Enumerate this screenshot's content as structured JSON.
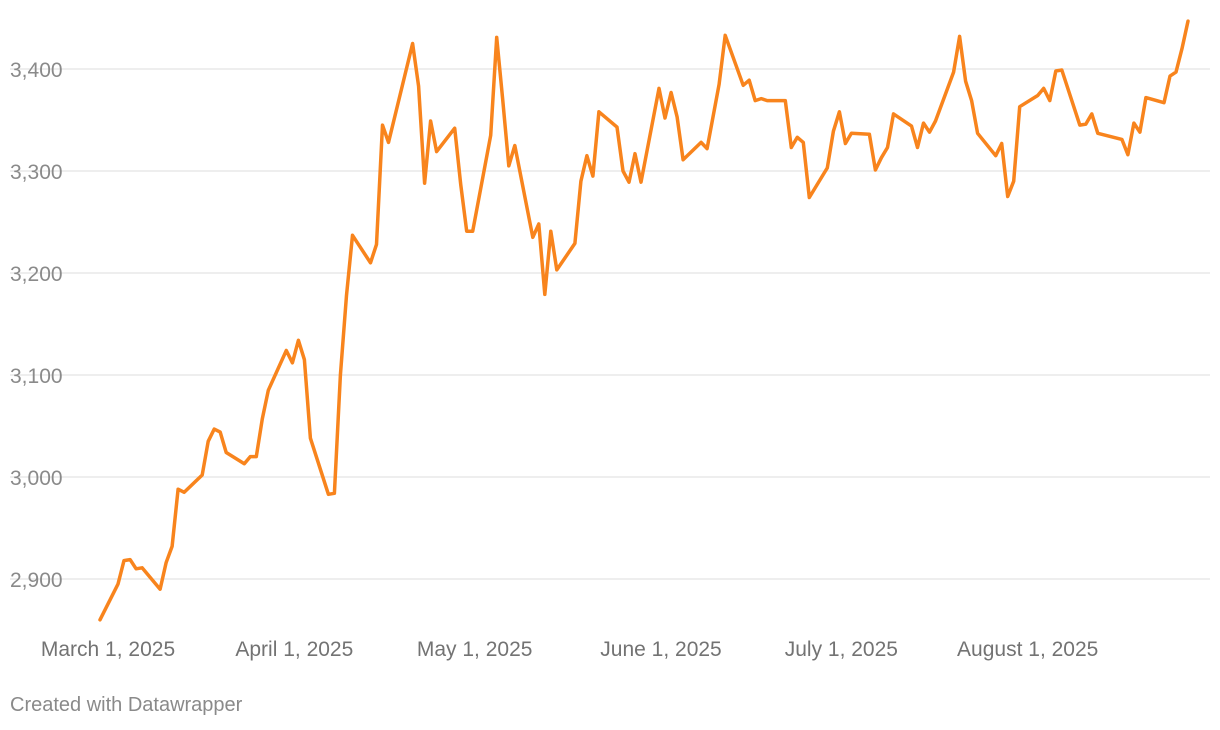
{
  "colors": {
    "series": "#f8841d"
  },
  "credit": "Created with Datawrapper",
  "chart_data": {
    "type": "line",
    "title": "",
    "xlabel": "",
    "ylabel": "",
    "grid": true,
    "ylim": [
      2860,
      3450
    ],
    "xlim": [
      "2025-03-01",
      "2025-08-28"
    ],
    "y_ticks": [
      {
        "value": 2900,
        "label": "2,900"
      },
      {
        "value": 3000,
        "label": "3,000"
      },
      {
        "value": 3100,
        "label": "3,100"
      },
      {
        "value": 3200,
        "label": "3,200"
      },
      {
        "value": 3300,
        "label": "3,300"
      },
      {
        "value": 3400,
        "label": "3,400"
      }
    ],
    "x_ticks": [
      {
        "value": "2025-03-01",
        "label": "March 1, 2025"
      },
      {
        "value": "2025-04-01",
        "label": "April 1, 2025"
      },
      {
        "value": "2025-05-01",
        "label": "May 1, 2025"
      },
      {
        "value": "2025-06-01",
        "label": "June 1, 2025"
      },
      {
        "value": "2025-07-01",
        "label": "July 1, 2025"
      },
      {
        "value": "2025-08-01",
        "label": "August 1, 2025"
      }
    ],
    "series": [
      {
        "color": "#f8841d",
        "points": [
          [
            "2025-03-01",
            2860
          ],
          [
            "2025-03-04",
            2895
          ],
          [
            "2025-03-05",
            2918
          ],
          [
            "2025-03-06",
            2919
          ],
          [
            "2025-03-07",
            2910
          ],
          [
            "2025-03-08",
            2911
          ],
          [
            "2025-03-11",
            2890
          ],
          [
            "2025-03-12",
            2916
          ],
          [
            "2025-03-13",
            2932
          ],
          [
            "2025-03-14",
            2988
          ],
          [
            "2025-03-15",
            2985
          ],
          [
            "2025-03-18",
            3002
          ],
          [
            "2025-03-19",
            3035
          ],
          [
            "2025-03-20",
            3047
          ],
          [
            "2025-03-21",
            3044
          ],
          [
            "2025-03-22",
            3024
          ],
          [
            "2025-03-25",
            3013
          ],
          [
            "2025-03-26",
            3020
          ],
          [
            "2025-03-27",
            3020
          ],
          [
            "2025-03-28",
            3057
          ],
          [
            "2025-03-29",
            3085
          ],
          [
            "2025-04-01",
            3124
          ],
          [
            "2025-04-02",
            3112
          ],
          [
            "2025-04-03",
            3134
          ],
          [
            "2025-04-04",
            3115
          ],
          [
            "2025-04-05",
            3038
          ],
          [
            "2025-04-08",
            2983
          ],
          [
            "2025-04-09",
            2984
          ],
          [
            "2025-04-10",
            3100
          ],
          [
            "2025-04-11",
            3178
          ],
          [
            "2025-04-12",
            3237
          ],
          [
            "2025-04-15",
            3210
          ],
          [
            "2025-04-16",
            3228
          ],
          [
            "2025-04-17",
            3345
          ],
          [
            "2025-04-18",
            3328
          ],
          [
            "2025-04-22",
            3425
          ],
          [
            "2025-04-23",
            3383
          ],
          [
            "2025-04-24",
            3288
          ],
          [
            "2025-04-25",
            3349
          ],
          [
            "2025-04-26",
            3319
          ],
          [
            "2025-04-29",
            3342
          ],
          [
            "2025-04-30",
            3287
          ],
          [
            "2025-05-01",
            3241
          ],
          [
            "2025-05-02",
            3241
          ],
          [
            "2025-05-05",
            3335
          ],
          [
            "2025-05-06",
            3431
          ],
          [
            "2025-05-07",
            3370
          ],
          [
            "2025-05-08",
            3305
          ],
          [
            "2025-05-09",
            3325
          ],
          [
            "2025-05-12",
            3235
          ],
          [
            "2025-05-13",
            3248
          ],
          [
            "2025-05-14",
            3179
          ],
          [
            "2025-05-15",
            3241
          ],
          [
            "2025-05-16",
            3203
          ],
          [
            "2025-05-19",
            3229
          ],
          [
            "2025-05-20",
            3290
          ],
          [
            "2025-05-21",
            3315
          ],
          [
            "2025-05-22",
            3295
          ],
          [
            "2025-05-23",
            3358
          ],
          [
            "2025-05-26",
            3343
          ],
          [
            "2025-05-27",
            3300
          ],
          [
            "2025-05-28",
            3289
          ],
          [
            "2025-05-29",
            3317
          ],
          [
            "2025-05-30",
            3289
          ],
          [
            "2025-06-02",
            3381
          ],
          [
            "2025-06-03",
            3352
          ],
          [
            "2025-06-04",
            3377
          ],
          [
            "2025-06-05",
            3353
          ],
          [
            "2025-06-06",
            3311
          ],
          [
            "2025-06-09",
            3328
          ],
          [
            "2025-06-10",
            3322
          ],
          [
            "2025-06-12",
            3385
          ],
          [
            "2025-06-13",
            3433
          ],
          [
            "2025-06-16",
            3384
          ],
          [
            "2025-06-17",
            3389
          ],
          [
            "2025-06-18",
            3369
          ],
          [
            "2025-06-19",
            3371
          ],
          [
            "2025-06-20",
            3369
          ],
          [
            "2025-06-23",
            3369
          ],
          [
            "2025-06-24",
            3323
          ],
          [
            "2025-06-25",
            3333
          ],
          [
            "2025-06-26",
            3328
          ],
          [
            "2025-06-27",
            3274
          ],
          [
            "2025-06-30",
            3303
          ],
          [
            "2025-07-01",
            3339
          ],
          [
            "2025-07-02",
            3358
          ],
          [
            "2025-07-03",
            3327
          ],
          [
            "2025-07-04",
            3337
          ],
          [
            "2025-07-07",
            3336
          ],
          [
            "2025-07-08",
            3301
          ],
          [
            "2025-07-09",
            3313
          ],
          [
            "2025-07-10",
            3323
          ],
          [
            "2025-07-11",
            3356
          ],
          [
            "2025-07-14",
            3344
          ],
          [
            "2025-07-15",
            3323
          ],
          [
            "2025-07-16",
            3347
          ],
          [
            "2025-07-17",
            3338
          ],
          [
            "2025-07-18",
            3349
          ],
          [
            "2025-07-21",
            3397
          ],
          [
            "2025-07-22",
            3432
          ],
          [
            "2025-07-23",
            3388
          ],
          [
            "2025-07-24",
            3369
          ],
          [
            "2025-07-25",
            3337
          ],
          [
            "2025-07-28",
            3315
          ],
          [
            "2025-07-29",
            3327
          ],
          [
            "2025-07-30",
            3275
          ],
          [
            "2025-07-31",
            3290
          ],
          [
            "2025-08-01",
            3363
          ],
          [
            "2025-08-04",
            3374
          ],
          [
            "2025-08-05",
            3381
          ],
          [
            "2025-08-06",
            3369
          ],
          [
            "2025-08-07",
            3398
          ],
          [
            "2025-08-08",
            3399
          ],
          [
            "2025-08-11",
            3345
          ],
          [
            "2025-08-12",
            3346
          ],
          [
            "2025-08-13",
            3356
          ],
          [
            "2025-08-14",
            3337
          ],
          [
            "2025-08-18",
            3331
          ],
          [
            "2025-08-19",
            3316
          ],
          [
            "2025-08-20",
            3347
          ],
          [
            "2025-08-21",
            3338
          ],
          [
            "2025-08-22",
            3372
          ],
          [
            "2025-08-25",
            3367
          ],
          [
            "2025-08-26",
            3393
          ],
          [
            "2025-08-27",
            3397
          ],
          [
            "2025-08-28",
            3420
          ],
          [
            "2025-08-29",
            3447
          ]
        ]
      }
    ]
  }
}
